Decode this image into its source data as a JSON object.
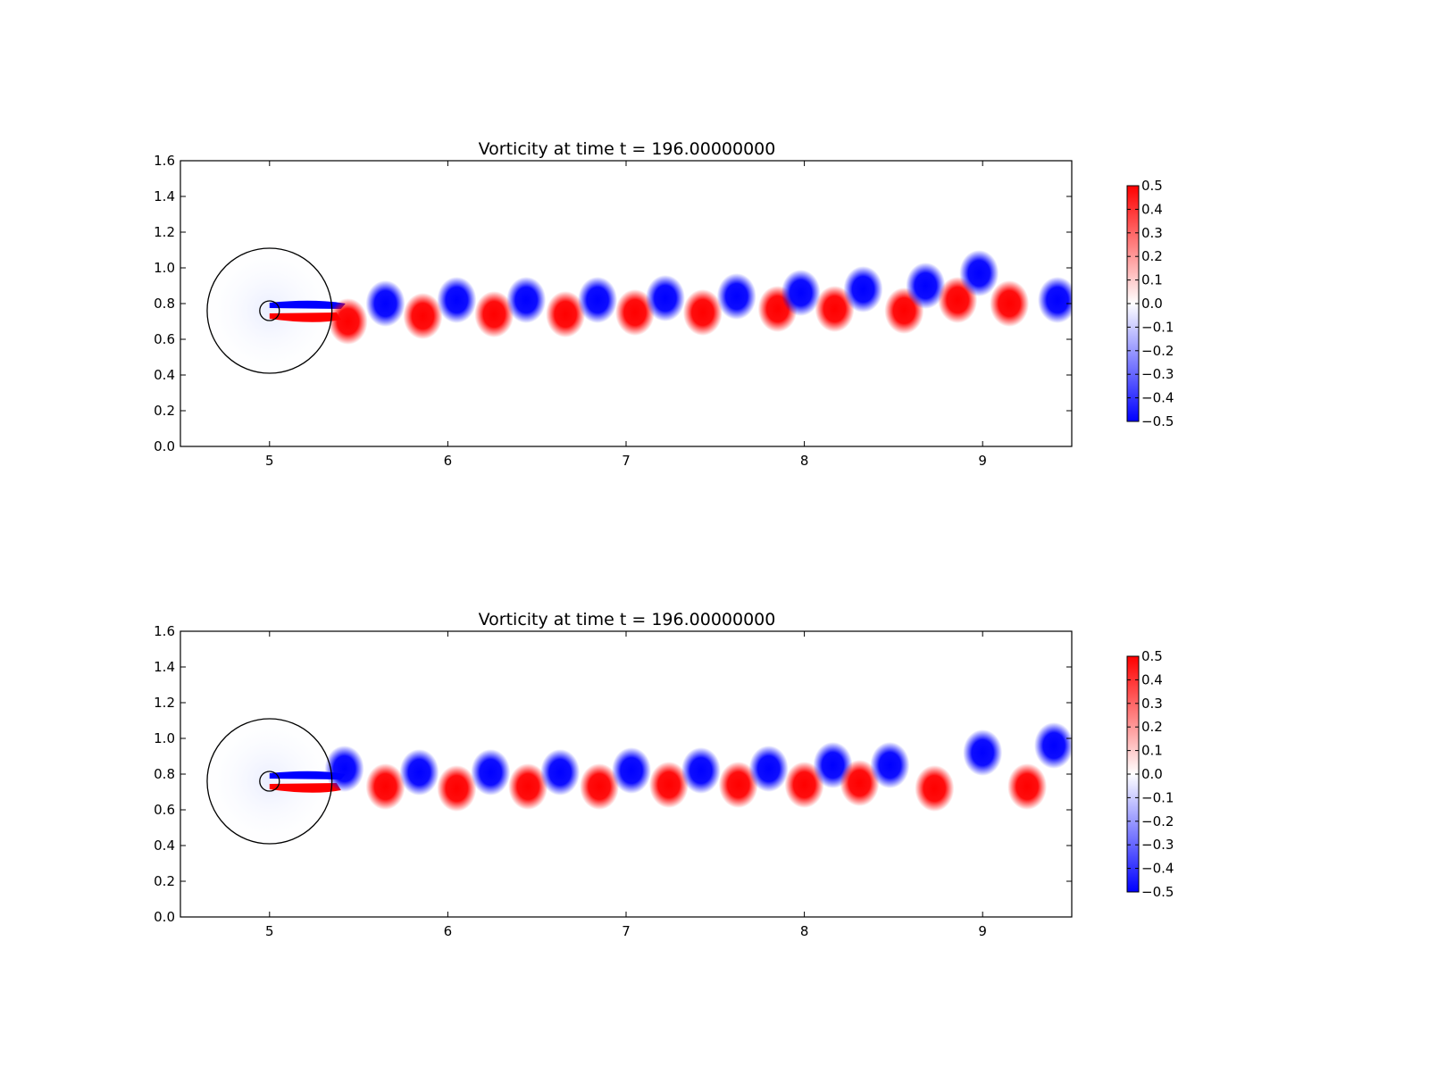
{
  "chart_data": [
    {
      "type": "heatmap",
      "title": "Vorticity at time t =   196.00000000",
      "xlabel": "",
      "ylabel": "",
      "xlim": [
        4.5,
        9.5
      ],
      "ylim": [
        0.0,
        1.6
      ],
      "x_ticks": [
        "5",
        "6",
        "7",
        "8",
        "9"
      ],
      "y_ticks": [
        "0.0",
        "0.2",
        "0.4",
        "0.6",
        "0.8",
        "1.0",
        "1.2",
        "1.4",
        "1.6"
      ],
      "colorbar": {
        "min": -0.5,
        "max": 0.5,
        "colors": [
          "#0000ff",
          "#ffffff",
          "#ff0000"
        ],
        "ticks": [
          "0.5",
          "0.4",
          "0.3",
          "0.2",
          "0.1",
          "0.0",
          "−0.1",
          "−0.2",
          "−0.3",
          "−0.4",
          "−0.5"
        ]
      },
      "circles": [
        {
          "cx": 5.0,
          "cy": 0.76,
          "r": 0.35
        },
        {
          "cx": 5.0,
          "cy": 0.76,
          "r": 0.055
        }
      ],
      "vortices": [
        {
          "x": 5.44,
          "y": 0.7,
          "value": 0.5
        },
        {
          "x": 5.65,
          "y": 0.8,
          "value": -0.5
        },
        {
          "x": 5.86,
          "y": 0.73,
          "value": 0.5
        },
        {
          "x": 6.05,
          "y": 0.82,
          "value": -0.5
        },
        {
          "x": 6.26,
          "y": 0.74,
          "value": 0.5
        },
        {
          "x": 6.44,
          "y": 0.82,
          "value": -0.5
        },
        {
          "x": 6.66,
          "y": 0.74,
          "value": 0.5
        },
        {
          "x": 6.84,
          "y": 0.82,
          "value": -0.5
        },
        {
          "x": 7.05,
          "y": 0.75,
          "value": 0.5
        },
        {
          "x": 7.22,
          "y": 0.83,
          "value": -0.5
        },
        {
          "x": 7.43,
          "y": 0.75,
          "value": 0.5
        },
        {
          "x": 7.62,
          "y": 0.84,
          "value": -0.5
        },
        {
          "x": 7.85,
          "y": 0.77,
          "value": 0.5
        },
        {
          "x": 7.98,
          "y": 0.86,
          "value": -0.5
        },
        {
          "x": 8.17,
          "y": 0.77,
          "value": 0.5
        },
        {
          "x": 8.33,
          "y": 0.88,
          "value": -0.5
        },
        {
          "x": 8.56,
          "y": 0.76,
          "value": 0.5
        },
        {
          "x": 8.68,
          "y": 0.9,
          "value": -0.5
        },
        {
          "x": 8.86,
          "y": 0.82,
          "value": 0.5
        },
        {
          "x": 8.98,
          "y": 0.97,
          "value": -0.5
        },
        {
          "x": 9.15,
          "y": 0.8,
          "value": 0.5
        },
        {
          "x": 9.42,
          "y": 0.82,
          "value": -0.5
        }
      ]
    },
    {
      "type": "heatmap",
      "title": "Vorticity at time t =   196.00000000",
      "xlabel": "",
      "ylabel": "",
      "xlim": [
        4.5,
        9.5
      ],
      "ylim": [
        0.0,
        1.6
      ],
      "x_ticks": [
        "5",
        "6",
        "7",
        "8",
        "9"
      ],
      "y_ticks": [
        "0.0",
        "0.2",
        "0.4",
        "0.6",
        "0.8",
        "1.0",
        "1.2",
        "1.4",
        "1.6"
      ],
      "colorbar": {
        "min": -0.5,
        "max": 0.5,
        "colors": [
          "#0000ff",
          "#ffffff",
          "#ff0000"
        ],
        "ticks": [
          "0.5",
          "0.4",
          "0.3",
          "0.2",
          "0.1",
          "0.0",
          "−0.1",
          "−0.2",
          "−0.3",
          "−0.4",
          "−0.5"
        ]
      },
      "circles": [
        {
          "cx": 5.0,
          "cy": 0.76,
          "r": 0.35
        },
        {
          "cx": 5.0,
          "cy": 0.76,
          "r": 0.055
        }
      ],
      "vortices": [
        {
          "x": 5.42,
          "y": 0.83,
          "value": -0.5
        },
        {
          "x": 5.65,
          "y": 0.73,
          "value": 0.5
        },
        {
          "x": 5.84,
          "y": 0.81,
          "value": -0.5
        },
        {
          "x": 6.05,
          "y": 0.72,
          "value": 0.5
        },
        {
          "x": 6.24,
          "y": 0.81,
          "value": -0.5
        },
        {
          "x": 6.45,
          "y": 0.73,
          "value": 0.5
        },
        {
          "x": 6.63,
          "y": 0.81,
          "value": -0.5
        },
        {
          "x": 6.85,
          "y": 0.73,
          "value": 0.5
        },
        {
          "x": 7.03,
          "y": 0.82,
          "value": -0.5
        },
        {
          "x": 7.24,
          "y": 0.74,
          "value": 0.5
        },
        {
          "x": 7.42,
          "y": 0.82,
          "value": -0.5
        },
        {
          "x": 7.63,
          "y": 0.74,
          "value": 0.5
        },
        {
          "x": 7.8,
          "y": 0.83,
          "value": -0.5
        },
        {
          "x": 8.0,
          "y": 0.74,
          "value": 0.5
        },
        {
          "x": 8.16,
          "y": 0.85,
          "value": -0.5
        },
        {
          "x": 8.31,
          "y": 0.75,
          "value": 0.5
        },
        {
          "x": 8.48,
          "y": 0.85,
          "value": -0.5
        },
        {
          "x": 8.73,
          "y": 0.72,
          "value": 0.5
        },
        {
          "x": 9.0,
          "y": 0.92,
          "value": -0.5
        },
        {
          "x": 9.25,
          "y": 0.73,
          "value": 0.5
        },
        {
          "x": 9.4,
          "y": 0.96,
          "value": -0.5
        }
      ]
    }
  ]
}
